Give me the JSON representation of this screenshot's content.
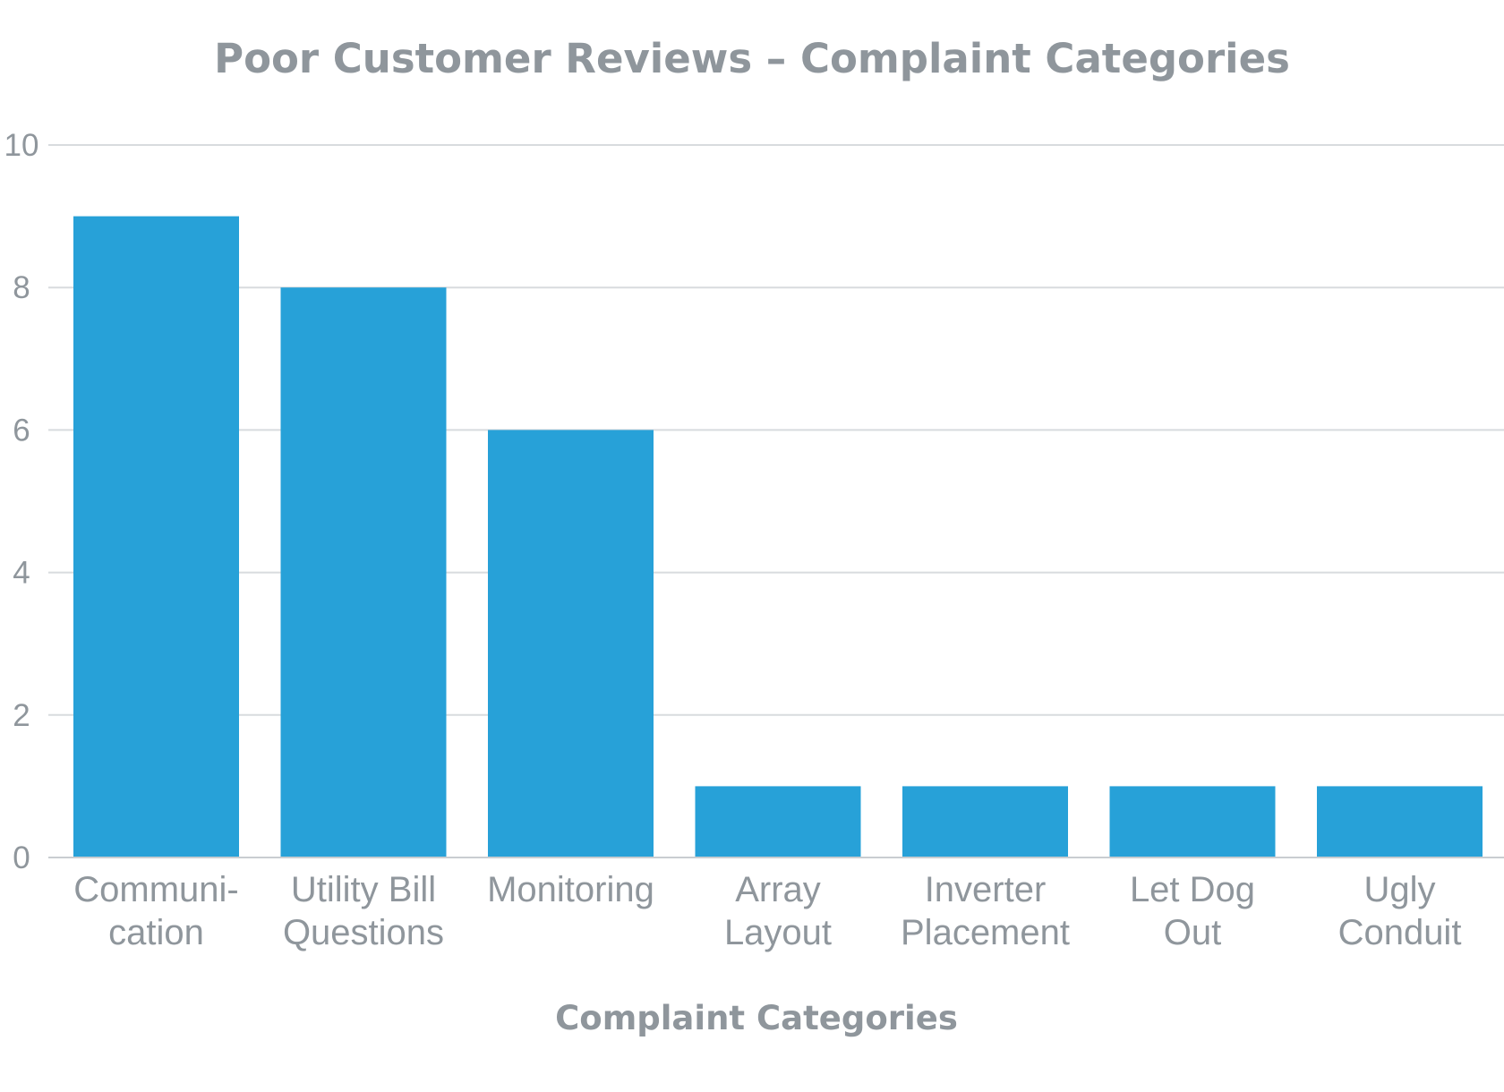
{
  "chart_data": {
    "type": "bar",
    "title": "Poor Customer Reviews – Complaint Categories",
    "xlabel": "Complaint Categories",
    "ylabel": "",
    "ylim": [
      0,
      10
    ],
    "yticks": [
      "0",
      "2",
      "4",
      "6",
      "8",
      "10"
    ],
    "grid": true,
    "legend": "none",
    "bar_color": "#27a1d8",
    "categories": [
      [
        "Communi-",
        "cation"
      ],
      [
        "Utility Bill",
        "Questions"
      ],
      [
        "Monitoring"
      ],
      [
        "Array",
        "Layout"
      ],
      [
        "Inverter",
        "Placement"
      ],
      [
        "Let Dog",
        "Out"
      ],
      [
        "Ugly",
        "Conduit"
      ]
    ],
    "values": [
      9,
      8,
      6,
      1,
      1,
      1,
      1
    ]
  }
}
